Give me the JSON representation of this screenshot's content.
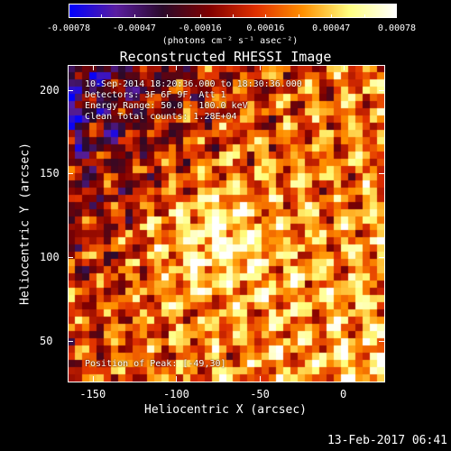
{
  "colorbar": {
    "tick_labels": [
      "-0.00078",
      "-0.00047",
      "-0.00016",
      "0.00016",
      "0.00047",
      "0.00078"
    ],
    "units": "(photons cm⁻² s⁻¹ asec⁻²)",
    "colors": [
      "#0000ff",
      "#5a1ea0",
      "#2a0a2a",
      "#800000",
      "#e03000",
      "#ff9000",
      "#ffff80",
      "#ffffff"
    ]
  },
  "title": "Reconstructed RHESSI Image",
  "annotations": {
    "time": "10-Sep-2014 18:20:36.000 to 18:30:36.000",
    "detectors": "Detectors: 3F 6F 9F, Att 1",
    "energy": "Energy Range: 50.0 - 100.0 keV",
    "clean": "Clean    Total counts: 1.28E+04",
    "peak": "Position of Peak: [-49,30]"
  },
  "chart_data": {
    "type": "heatmap",
    "title": "Reconstructed RHESSI Image",
    "xlabel": "Heliocentric X (arcsec)",
    "ylabel": "Heliocentric Y (arcsec)",
    "xlim": [
      -165,
      25
    ],
    "ylim": [
      25,
      215
    ],
    "x_ticks": [
      -150,
      -100,
      -50,
      0
    ],
    "y_ticks": [
      50,
      100,
      150,
      200
    ],
    "x_tick_labels": [
      "-150",
      "-100",
      "-50",
      "0"
    ],
    "y_tick_labels": [
      "50",
      "100",
      "150",
      "200"
    ],
    "color_range": [
      -0.00078,
      0.00078
    ],
    "peak": [
      -49,
      30
    ]
  },
  "date_stamp": "13-Feb-2017 06:41"
}
